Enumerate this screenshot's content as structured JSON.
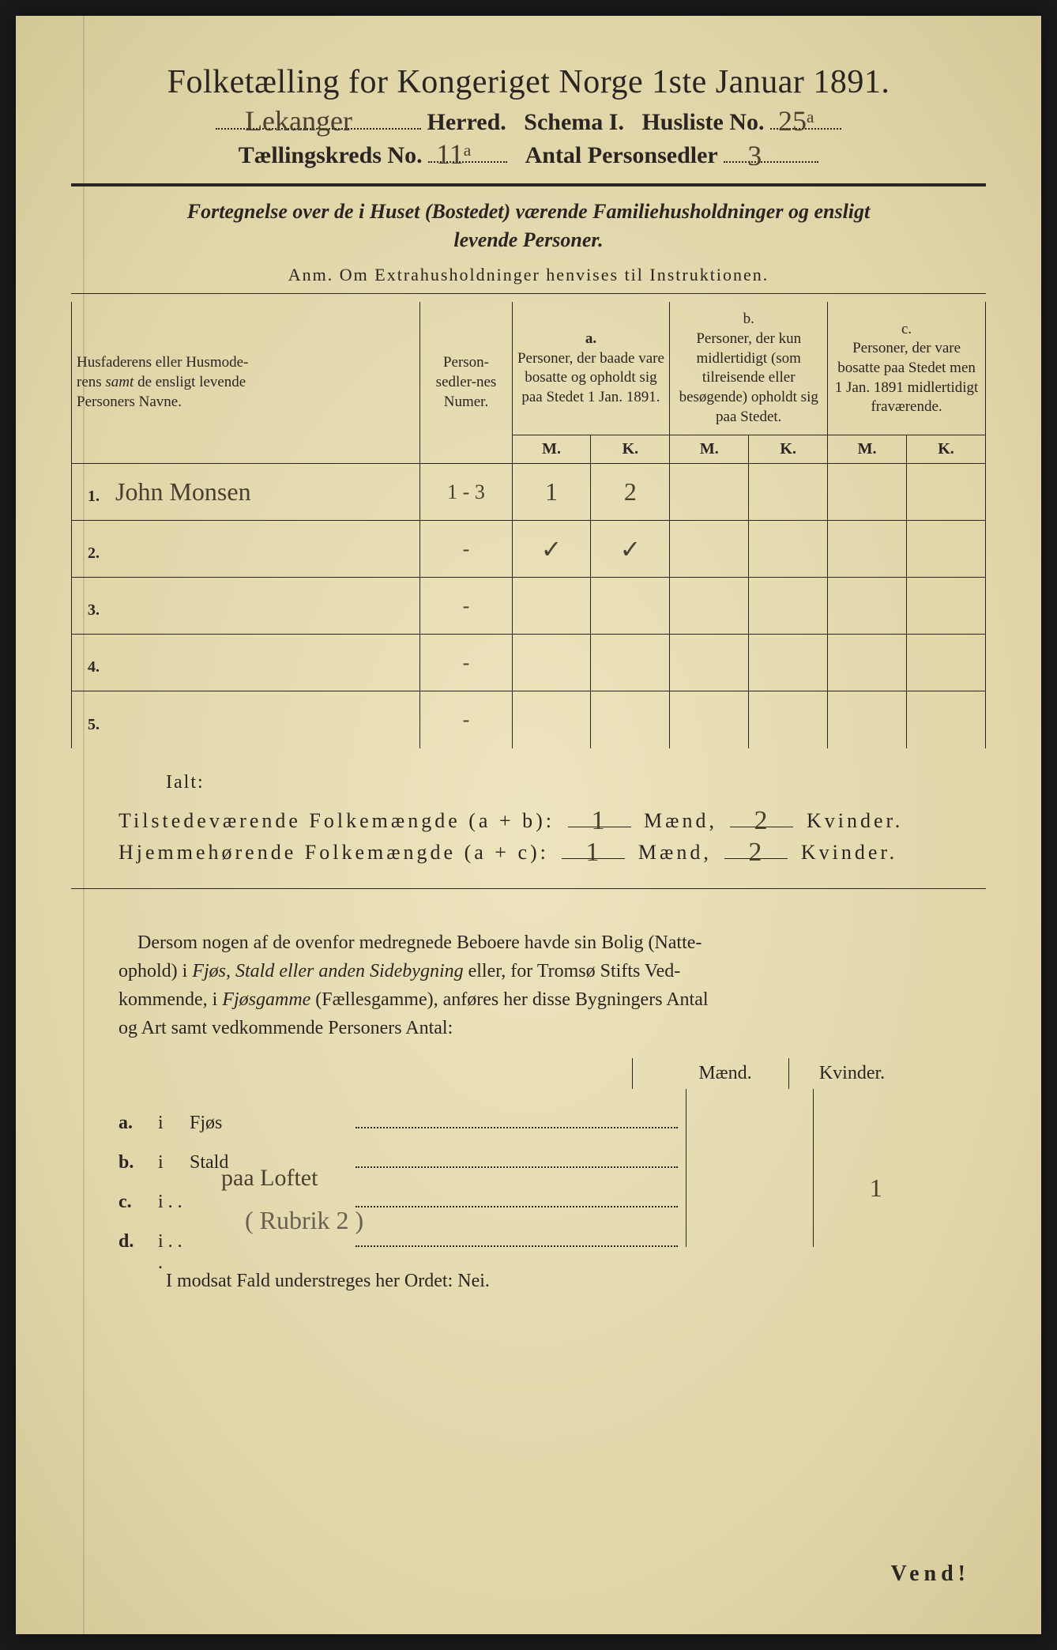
{
  "title": "Folketælling for Kongeriget Norge 1ste Januar 1891.",
  "line2": {
    "herred_hw": "Lekanger",
    "herred_label": "Herred.",
    "schema": "Schema I.",
    "husliste_label": "Husliste No.",
    "husliste_hw": "25ᵃ"
  },
  "line3": {
    "kreds_label": "Tællingskreds No.",
    "kreds_hw": "11ᵃ",
    "antal_label": "Antal Personsedler",
    "antal_hw": "3"
  },
  "section_header": "Fortegnelse over de i Huset (Bostedet) værende Familiehusholdninger og ensligt levende Personer.",
  "anm": "Anm.  Om Extrahusholdninger henvises til Instruktionen.",
  "table": {
    "col_name": "Husfaderens eller Husmoderens samt de ensligt levende Personers Navne.",
    "col_num": "Person-sedler-nes Numer.",
    "col_a_head": "a.",
    "col_a": "Personer, der baade vare bosatte og opholdt sig paa Stedet 1 Jan. 1891.",
    "col_b_head": "b.",
    "col_b": "Personer, der kun midlertidigt (som tilreisende eller besøgende) opholdt sig paa Stedet.",
    "col_c_head": "c.",
    "col_c": "Personer, der vare bosatte paa Stedet men 1 Jan. 1891 midlertidigt fraværende.",
    "m": "M.",
    "k": "K.",
    "rows": [
      {
        "n": "1.",
        "name_hw": "John Monsen",
        "num": "1 - 3",
        "am": "1",
        "ak": "2",
        "bm": "",
        "bk": "",
        "cm": "",
        "ck": ""
      },
      {
        "n": "2.",
        "name_hw": "",
        "num": "-",
        "am": "✓",
        "ak": "✓",
        "bm": "",
        "bk": "",
        "cm": "",
        "ck": ""
      },
      {
        "n": "3.",
        "name_hw": "",
        "num": "-",
        "am": "",
        "ak": "",
        "bm": "",
        "bk": "",
        "cm": "",
        "ck": ""
      },
      {
        "n": "4.",
        "name_hw": "",
        "num": "-",
        "am": "",
        "ak": "",
        "bm": "",
        "bk": "",
        "cm": "",
        "ck": ""
      },
      {
        "n": "5.",
        "name_hw": "",
        "num": "-",
        "am": "",
        "ak": "",
        "bm": "",
        "bk": "",
        "cm": "",
        "ck": ""
      }
    ]
  },
  "ialt": "Ialt:",
  "sum1": {
    "label": "Tilstedeværende Folkemængde (a + b):",
    "m_hw": "1",
    "m_lbl": "Mænd,",
    "k_hw": "2",
    "k_lbl": "Kvinder."
  },
  "sum2": {
    "label": "Hjemmehørende Folkemængde (a + c):",
    "m_hw": "1",
    "m_lbl": "Mænd,",
    "k_hw": "2",
    "k_lbl": "Kvinder."
  },
  "paragraph": "Dersom nogen af de ovenfor medregnede Beboere havde sin Bolig (Natteophold) i Fjøs, Stald eller anden Sidebygning eller, for Tromsø Stifts Vedkommende, i Fjøsgamme (Fællesgamme), anføres her disse Bygningers Antal og Art samt vedkommende Personers Antal:",
  "bt_header": {
    "m": "Mænd.",
    "k": "Kvinder."
  },
  "bt_rows": [
    {
      "l": "a.",
      "i": "i",
      "name": "Fjøs",
      "hw": "",
      "m": "",
      "k": ""
    },
    {
      "l": "b.",
      "i": "i",
      "name": "Stald",
      "hw": "",
      "m": "",
      "k": ""
    },
    {
      "l": "c.",
      "i": "i . .",
      "name": "",
      "hw": "paa Loftet",
      "m": "",
      "k": "1"
    },
    {
      "l": "d.",
      "i": "i . . .",
      "name": "",
      "hw": "( Rubrik 2 )",
      "m": "",
      "k": ""
    }
  ],
  "footer": "I modsat Fald understreges her Ordet: Nei.",
  "vend": "Vend!"
}
